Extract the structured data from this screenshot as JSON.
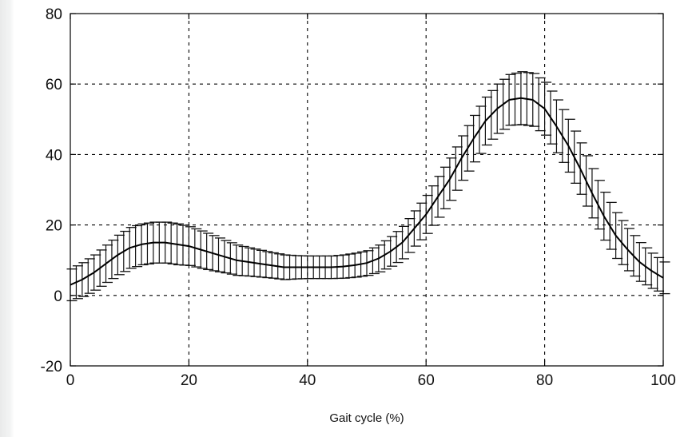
{
  "chart_data": {
    "type": "line",
    "title": "",
    "xlabel": "Gait cycle (%)",
    "ylabel": "",
    "xlim": [
      0,
      100
    ],
    "ylim": [
      -20,
      80
    ],
    "xticks": [
      0,
      20,
      40,
      60,
      80,
      100
    ],
    "yticks": [
      -20,
      0,
      20,
      40,
      60,
      80
    ],
    "grid": true,
    "error_bars": true,
    "line_color": "#000000",
    "grid_color": "#000000",
    "series": [
      {
        "x": [
          0,
          2,
          4,
          6,
          8,
          10,
          12,
          14,
          16,
          18,
          20,
          22,
          24,
          26,
          28,
          30,
          32,
          34,
          36,
          38,
          40,
          42,
          44,
          46,
          48,
          50,
          52,
          54,
          56,
          58,
          60,
          62,
          64,
          66,
          68,
          70,
          72,
          74,
          76,
          78,
          80,
          82,
          84,
          86,
          88,
          90,
          92,
          94,
          96,
          98,
          100
        ],
        "y": [
          3,
          4.5,
          6.5,
          9,
          11.5,
          13.5,
          14.5,
          15,
          15,
          14.5,
          14,
          13,
          12,
          11,
          10,
          9.5,
          9,
          8.5,
          8,
          8,
          8,
          8,
          8,
          8.2,
          8.6,
          9.2,
          10.5,
          12.5,
          15,
          19,
          23,
          28,
          33,
          39,
          44.5,
          49.5,
          53,
          55.5,
          56,
          55.5,
          53,
          48,
          42.5,
          36,
          29,
          22.5,
          17,
          13,
          9.5,
          7,
          5
        ],
        "error": [
          4.5,
          4.8,
          5,
          5.3,
          5.6,
          5.8,
          5.8,
          5.8,
          5.8,
          5.8,
          5.5,
          5.3,
          5,
          4.6,
          4.3,
          4,
          3.8,
          3.6,
          3.5,
          3.3,
          3.2,
          3.2,
          3.2,
          3.3,
          3.4,
          3.5,
          3.8,
          4.2,
          4.6,
          5,
          5.4,
          5.8,
          6,
          6.3,
          6.6,
          6.8,
          7,
          7.2,
          7.5,
          7.5,
          7.5,
          7.5,
          7.5,
          7.3,
          7,
          6.8,
          6.5,
          6,
          5.5,
          5,
          4.5
        ]
      }
    ]
  }
}
